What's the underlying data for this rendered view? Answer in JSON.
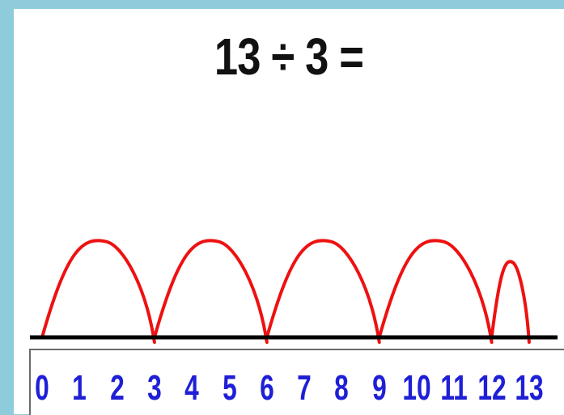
{
  "equation": "13 ÷ 3 =",
  "number_line": {
    "ticks": [
      "0",
      "1",
      "2",
      "3",
      "4",
      "5",
      "6",
      "7",
      "8",
      "9",
      "10",
      "11",
      "12",
      "13"
    ],
    "min": 0,
    "max": 13
  },
  "jumps": [
    {
      "from": 0,
      "to": 3,
      "size": 3
    },
    {
      "from": 3,
      "to": 6,
      "size": 3
    },
    {
      "from": 6,
      "to": 9,
      "size": 3
    },
    {
      "from": 9,
      "to": 12,
      "size": 3
    },
    {
      "from": 12,
      "to": 13,
      "size": 1
    }
  ],
  "colors": {
    "background": "#8ecbdb",
    "jump_color": "#ee1111",
    "number_color": "#1f1fd6",
    "axis_color": "#000000"
  }
}
